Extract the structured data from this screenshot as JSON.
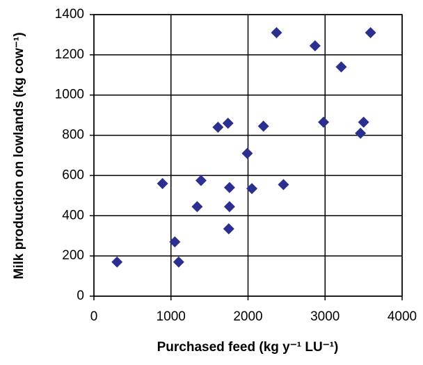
{
  "chart_data": {
    "type": "scatter",
    "xlabel": "Purchased feed (kg y⁻¹ LU⁻¹)",
    "ylabel": "Milk production on lowlands (kg cow⁻¹)",
    "x": [
      300,
      890,
      1050,
      1100,
      1340,
      1390,
      1610,
      1740,
      1760,
      1760,
      1750,
      1990,
      2050,
      2200,
      2370,
      2460,
      2870,
      2980,
      3210,
      3460,
      3500,
      3590
    ],
    "values": [
      170,
      560,
      270,
      170,
      445,
      575,
      840,
      860,
      540,
      445,
      335,
      710,
      535,
      845,
      1310,
      555,
      1245,
      865,
      1140,
      810,
      865,
      1310
    ],
    "color": "#2b2f8f",
    "xlim": [
      0,
      4000
    ],
    "xticks": [
      0,
      1000,
      2000,
      3000,
      4000
    ],
    "ylim": [
      0,
      1400
    ],
    "yticks": [
      0,
      200,
      400,
      600,
      800,
      1000,
      1200,
      1400
    ],
    "grid": true
  }
}
